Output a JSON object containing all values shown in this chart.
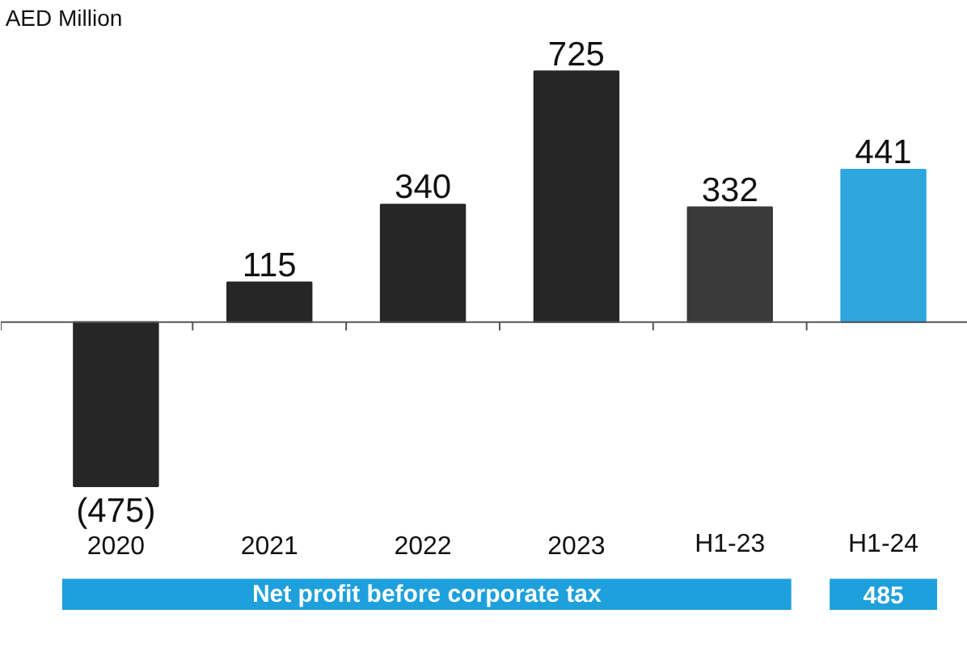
{
  "chart_data": {
    "type": "bar",
    "categories": [
      "2020",
      "2021",
      "2022",
      "2023",
      "H1-23",
      "H1-24"
    ],
    "values": [
      -475,
      115,
      340,
      725,
      332,
      441
    ],
    "colors": [
      "#262626",
      "#262626",
      "#262626",
      "#262626",
      "#3a3a3a",
      "#2ea6de"
    ],
    "value_labels": [
      "(475)",
      "115",
      "340",
      "725",
      "332",
      "441"
    ],
    "annotations": [
      "AED Million",
      "Net profit before corporate tax",
      "485"
    ]
  }
}
